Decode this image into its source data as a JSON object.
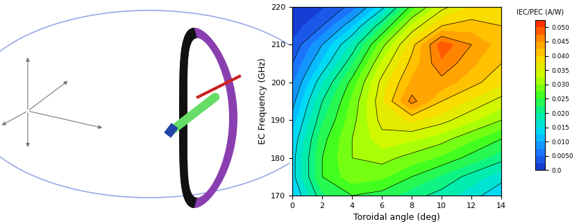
{
  "chart_data": {
    "type": "contour",
    "x_label": "Toroidal angle (deg)",
    "y_label": "EC Frequency (GHz)",
    "x": [
      0,
      2,
      4,
      6,
      8,
      10,
      12,
      14
    ],
    "y": [
      170,
      175,
      180,
      185,
      190,
      195,
      200,
      205,
      210,
      215,
      220
    ],
    "values": [
      [
        0.012,
        0.022,
        0.025,
        0.024,
        0.021,
        0.019,
        0.016,
        0.013
      ],
      [
        0.014,
        0.025,
        0.029,
        0.028,
        0.025,
        0.022,
        0.019,
        0.016
      ],
      [
        0.014,
        0.025,
        0.03,
        0.031,
        0.029,
        0.027,
        0.024,
        0.021
      ],
      [
        0.013,
        0.024,
        0.03,
        0.034,
        0.033,
        0.031,
        0.028,
        0.025
      ],
      [
        0.011,
        0.022,
        0.029,
        0.036,
        0.038,
        0.036,
        0.033,
        0.03
      ],
      [
        0.009,
        0.02,
        0.028,
        0.037,
        0.046,
        0.04,
        0.037,
        0.034
      ],
      [
        0.007,
        0.017,
        0.026,
        0.036,
        0.043,
        0.044,
        0.041,
        0.038
      ],
      [
        0.005,
        0.013,
        0.022,
        0.033,
        0.041,
        0.047,
        0.043,
        0.04
      ],
      [
        0.003,
        0.01,
        0.018,
        0.029,
        0.039,
        0.049,
        0.045,
        0.041
      ],
      [
        0.001,
        0.005,
        0.012,
        0.022,
        0.033,
        0.04,
        0.041,
        0.04
      ],
      [
        0.0,
        0.002,
        0.006,
        0.014,
        0.026,
        0.034,
        0.038,
        0.039
      ]
    ],
    "xlim": [
      0,
      14
    ],
    "xticks": [
      0,
      2,
      4,
      6,
      8,
      10,
      12,
      14
    ],
    "ylim": [
      170,
      220
    ],
    "yticks": [
      170,
      180,
      190,
      200,
      210,
      220
    ],
    "levels": [
      0,
      0.0025,
      0.005,
      0.0075,
      0.01,
      0.0125,
      0.015,
      0.0175,
      0.02,
      0.0225,
      0.025,
      0.0275,
      0.03,
      0.0325,
      0.035,
      0.0375,
      0.04,
      0.0425,
      0.045,
      0.0475,
      0.05,
      0.0525
    ],
    "colorbar": {
      "label": "IEC/PEC (A/W)",
      "range": [
        0,
        0.0525
      ],
      "ticks": [
        {
          "value": 0,
          "label": "0.0"
        },
        {
          "value": 0.005,
          "label": "0.0050"
        },
        {
          "value": 0.01,
          "label": "0.010"
        },
        {
          "value": 0.015,
          "label": "0.015"
        },
        {
          "value": 0.02,
          "label": "0.020"
        },
        {
          "value": 0.025,
          "label": "0.025"
        },
        {
          "value": 0.03,
          "label": "0.030"
        },
        {
          "value": 0.035,
          "label": "0.035"
        },
        {
          "value": 0.04,
          "label": "0.040"
        },
        {
          "value": 0.045,
          "label": "0.045"
        },
        {
          "value": 0.05,
          "label": "0.050"
        }
      ]
    }
  }
}
